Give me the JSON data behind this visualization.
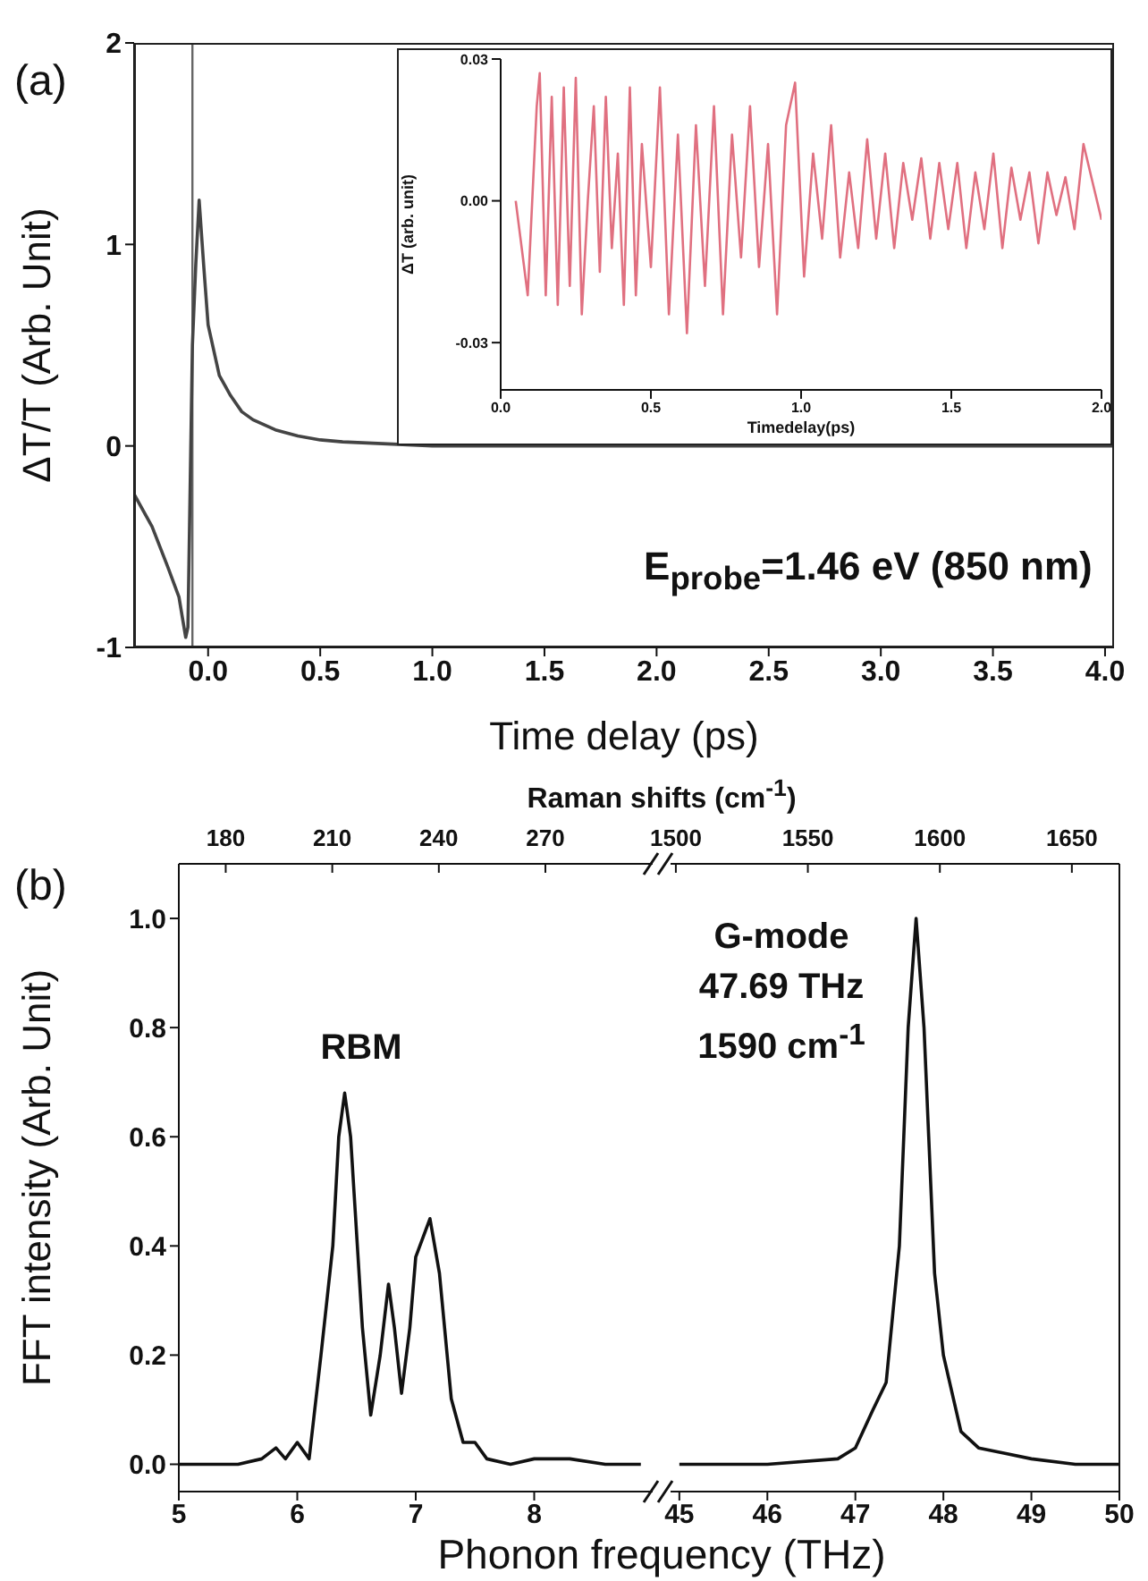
{
  "chart_data": [
    {
      "type": "line",
      "ylabel": "ΔT/T (Arb. Unit)",
      "xlabel": "Time delay (ps)",
      "color": "#444444",
      "annotations": [
        "(a)",
        "E$_{probe}$=1.46 eV (850 nm)"
      ],
      "x": [
        -0.33,
        -0.25,
        -0.18,
        -0.13,
        -0.1,
        -0.09,
        -0.07,
        -0.055,
        -0.04,
        -0.02,
        0.0,
        0.05,
        0.1,
        0.15,
        0.2,
        0.3,
        0.4,
        0.5,
        0.6,
        0.8,
        1.0,
        1.5,
        2.0,
        3.0,
        4.04
      ],
      "values": [
        -0.24,
        -0.4,
        -0.6,
        -0.75,
        -0.95,
        -0.9,
        0.5,
        0.9,
        1.22,
        0.9,
        0.6,
        0.35,
        0.25,
        0.17,
        0.13,
        0.08,
        0.05,
        0.03,
        0.02,
        0.01,
        0.0,
        0.0,
        0.0,
        0.0,
        0.0
      ],
      "ref_lines": [
        {
          "axis": "x",
          "value": -0.07,
          "color": "#666666"
        }
      ],
      "xlim": [
        -0.33,
        4.04
      ],
      "ylim": [
        -1,
        2
      ],
      "xticks": [
        {
          "value": 0,
          "label": "0.0"
        },
        {
          "value": 0.5,
          "label": "0.5"
        },
        {
          "value": 1,
          "label": "1.0"
        },
        {
          "value": 1.5,
          "label": "1.5"
        },
        {
          "value": 2,
          "label": "2.0"
        },
        {
          "value": 2.5,
          "label": "2.5"
        },
        {
          "value": 3,
          "label": "3.0"
        },
        {
          "value": 3.5,
          "label": "3.5"
        },
        {
          "value": 4,
          "label": "4.0"
        }
      ],
      "yticks": [
        -1,
        0,
        1,
        2
      ]
    },
    {
      "type": "line",
      "ylabel": "ΔT (arb. unit)",
      "xlabel": "Timedelay(ps)",
      "color": "#e07080",
      "x": [
        0.05,
        0.07,
        0.09,
        0.1,
        0.12,
        0.13,
        0.15,
        0.17,
        0.19,
        0.21,
        0.23,
        0.25,
        0.27,
        0.29,
        0.31,
        0.33,
        0.35,
        0.37,
        0.39,
        0.41,
        0.43,
        0.45,
        0.47,
        0.5,
        0.53,
        0.56,
        0.59,
        0.62,
        0.65,
        0.68,
        0.71,
        0.74,
        0.77,
        0.8,
        0.83,
        0.86,
        0.89,
        0.92,
        0.95,
        0.98,
        1.01,
        1.04,
        1.07,
        1.1,
        1.13,
        1.16,
        1.19,
        1.22,
        1.25,
        1.28,
        1.31,
        1.34,
        1.37,
        1.4,
        1.43,
        1.46,
        1.49,
        1.52,
        1.55,
        1.58,
        1.61,
        1.64,
        1.67,
        1.7,
        1.73,
        1.76,
        1.79,
        1.82,
        1.85,
        1.88,
        1.91,
        1.94,
        1.97,
        2.0
      ],
      "values": [
        0.0,
        null,
        -0.02,
        null,
        0.02,
        0.027,
        -0.02,
        0.022,
        -0.022,
        0.024,
        -0.018,
        0.026,
        -0.024,
        0.0,
        0.02,
        -0.015,
        0.022,
        -0.01,
        0.01,
        -0.022,
        0.024,
        -0.02,
        0.012,
        -0.014,
        0.024,
        -0.024,
        0.014,
        -0.028,
        0.016,
        -0.018,
        0.02,
        -0.024,
        0.014,
        -0.012,
        0.02,
        -0.014,
        0.012,
        -0.024,
        0.016,
        0.025,
        -0.016,
        0.01,
        -0.008,
        0.016,
        -0.012,
        0.006,
        -0.01,
        0.013,
        -0.008,
        0.01,
        -0.01,
        0.008,
        -0.004,
        0.009,
        -0.008,
        0.008,
        -0.006,
        0.008,
        -0.01,
        0.006,
        -0.006,
        0.01,
        -0.01,
        0.007,
        -0.004,
        0.006,
        -0.009,
        0.006,
        -0.003,
        0.005,
        -0.006,
        0.012,
        0.004,
        -0.004
      ],
      "xlim": [
        0,
        2
      ],
      "ylim": [
        -0.04,
        0.03
      ],
      "xticks": [
        {
          "value": 0,
          "label": "0.0"
        },
        {
          "value": 0.5,
          "label": "0.5"
        },
        {
          "value": 1,
          "label": "1.0"
        },
        {
          "value": 1.5,
          "label": "1.5"
        },
        {
          "value": 2,
          "label": "2.0"
        }
      ],
      "yticks": [
        {
          "value": -0.03,
          "label": "-0.03"
        },
        {
          "value": 0,
          "label": "0.00"
        },
        {
          "value": 0.03,
          "label": "0.03"
        }
      ]
    },
    {
      "type": "line",
      "ylabel": "FFT intensity (Arb. Unit)",
      "xlabel": "Phonon frequency (THz)",
      "x2label": "Raman shifts (cm$^{-1}$)",
      "color": "#111111",
      "annotations": [
        "(b)",
        "RBM"
      ],
      "x": [
        5.0,
        5.5,
        5.7,
        5.82,
        5.9,
        6.0,
        6.1,
        6.2,
        6.3,
        6.35,
        6.4,
        6.45,
        6.55,
        6.62,
        6.7,
        6.77,
        6.82,
        6.88,
        6.95,
        7.0,
        7.12,
        7.2,
        7.3,
        7.4,
        7.5,
        7.6,
        7.8,
        8.0,
        8.3,
        8.6,
        8.9
      ],
      "values": [
        0.0,
        0.0,
        0.01,
        0.03,
        0.01,
        0.04,
        0.01,
        0.2,
        0.4,
        0.6,
        0.68,
        0.6,
        0.25,
        0.09,
        0.2,
        0.33,
        0.25,
        0.13,
        0.25,
        0.38,
        0.45,
        0.35,
        0.12,
        0.04,
        0.04,
        0.01,
        0.0,
        0.01,
        0.01,
        0.0,
        0.0
      ],
      "xlim": [
        5,
        9.0
      ],
      "ylim": [
        -0.05,
        1.1
      ],
      "x2lim": [
        166.8,
        300.2
      ],
      "xticks": [
        5,
        6,
        7,
        8
      ],
      "x2ticks": [
        180,
        210,
        240,
        270
      ],
      "yticks": [
        {
          "value": 0,
          "label": "0.0"
        },
        {
          "value": 0.2,
          "label": "0.2"
        },
        {
          "value": 0.4,
          "label": "0.4"
        },
        {
          "value": 0.6,
          "label": "0.6"
        },
        {
          "value": 0.8,
          "label": "0.8"
        },
        {
          "value": 1,
          "label": "1.0"
        }
      ]
    },
    {
      "type": "line",
      "color": "#111111",
      "tick_labels": "x",
      "annotations": [
        "G-mode",
        "47.69 THz",
        "1590 cm$^{-1}$"
      ],
      "x": [
        45.0,
        46.0,
        46.8,
        47.0,
        47.2,
        47.35,
        47.5,
        47.6,
        47.69,
        47.78,
        47.9,
        48.0,
        48.2,
        48.4,
        48.7,
        49.0,
        49.5,
        50.0
      ],
      "values": [
        0.0,
        0.0,
        0.01,
        0.03,
        0.1,
        0.15,
        0.4,
        0.8,
        1.0,
        0.8,
        0.35,
        0.2,
        0.06,
        0.03,
        0.02,
        0.01,
        0.0,
        0.0
      ],
      "xlim": [
        44.9,
        50
      ],
      "ylim": [
        -0.05,
        1.1
      ],
      "x2lim": [
        1498,
        1668
      ],
      "xticks": [
        45,
        46,
        47,
        48,
        49,
        50
      ],
      "x2ticks": [
        1500,
        1550,
        1600,
        1650
      ]
    }
  ]
}
